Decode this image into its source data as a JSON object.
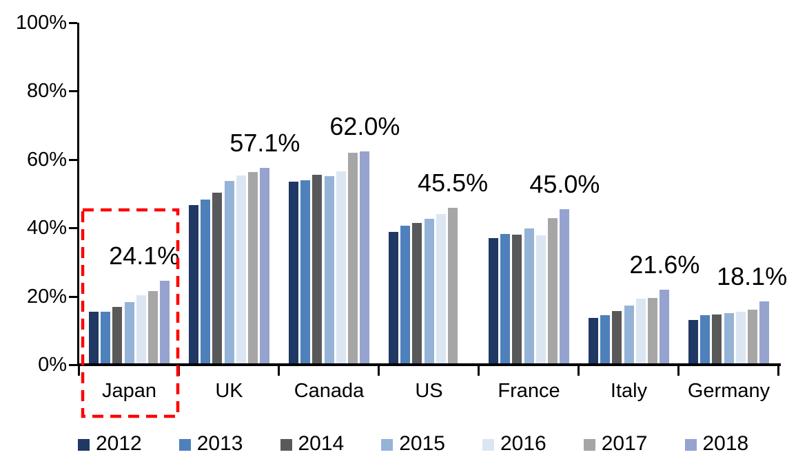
{
  "chart_data": {
    "type": "bar",
    "title": "",
    "xlabel": "",
    "ylabel": "",
    "categories": [
      "Japan",
      "UK",
      "Canada",
      "US",
      "France",
      "Italy",
      "Germany"
    ],
    "series": [
      {
        "name": "2012",
        "color": "#1F3864",
        "values": [
          15.0,
          46.3,
          53.1,
          38.4,
          36.6,
          13.3,
          12.6
        ]
      },
      {
        "name": "2013",
        "color": "#4E80BC",
        "values": [
          15.1,
          47.9,
          53.6,
          40.2,
          37.8,
          14.1,
          14.0
        ]
      },
      {
        "name": "2014",
        "color": "#595959",
        "values": [
          16.6,
          50.0,
          55.2,
          41.0,
          37.7,
          15.4,
          14.3
        ]
      },
      {
        "name": "2015",
        "color": "#95B3D7",
        "values": [
          18.0,
          53.3,
          54.8,
          42.3,
          39.4,
          16.9,
          14.7
        ]
      },
      {
        "name": "2016",
        "color": "#DCE6F2",
        "values": [
          20.0,
          54.9,
          56.2,
          43.7,
          37.4,
          19.0,
          15.2
        ]
      },
      {
        "name": "2017",
        "color": "#A6A6A6",
        "values": [
          21.1,
          56.0,
          61.6,
          45.5,
          42.4,
          19.1,
          15.8
        ]
      },
      {
        "name": "2018",
        "color": "#96A3CF",
        "values": [
          24.1,
          57.1,
          62.0,
          null,
          45.0,
          21.6,
          18.1
        ]
      }
    ],
    "group_value_labels": [
      "24.1%",
      "57.1%",
      "62.0%",
      "45.5%",
      "45.0%",
      "21.6%",
      "18.1%"
    ],
    "y_ticks": [
      "0%",
      "20%",
      "40%",
      "60%",
      "80%",
      "100%"
    ],
    "ylim": [
      0,
      100
    ],
    "grid": false,
    "legend_position": "bottom",
    "legend_items": [
      "2012",
      "2013",
      "2014",
      "2015",
      "2016",
      "2017",
      "2018"
    ],
    "axis_color": "#000000",
    "highlight": {
      "category": "Japan",
      "style": "dashed-box",
      "color": "#FF0000"
    }
  }
}
